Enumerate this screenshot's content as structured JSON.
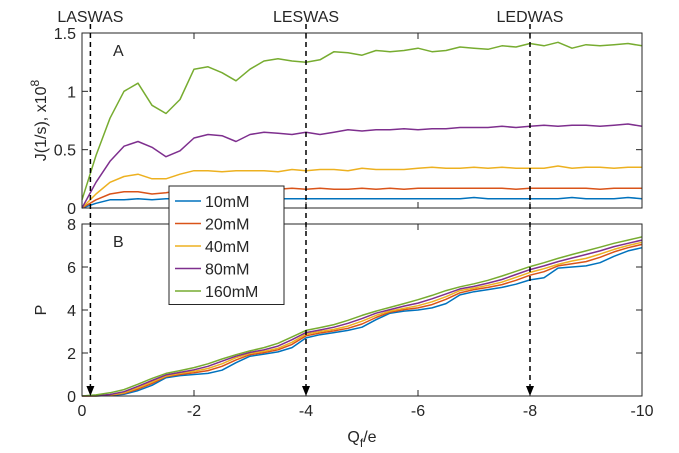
{
  "chart_data": [
    {
      "type": "line",
      "panel_label": "A",
      "ylabel": "J(1/s), x10",
      "ylabel_exp": "8",
      "xlabel": "",
      "xlim": [
        0,
        -10
      ],
      "ylim": [
        0,
        1.5
      ],
      "xticks": [
        0,
        -2,
        -4,
        -6,
        -8,
        -10
      ],
      "yticks": [
        0,
        0.5,
        1,
        1.5
      ],
      "ytick_labels": [
        "0",
        "0.5",
        "1",
        "1.5"
      ],
      "show_xtick_labels": false,
      "grid": false,
      "x": [
        0,
        -0.25,
        -0.5,
        -0.75,
        -1.0,
        -1.25,
        -1.5,
        -1.75,
        -2.0,
        -2.25,
        -2.5,
        -2.75,
        -3.0,
        -3.25,
        -3.5,
        -3.75,
        -4.0,
        -4.25,
        -4.5,
        -4.75,
        -5.0,
        -5.25,
        -5.5,
        -5.75,
        -6.0,
        -6.25,
        -6.5,
        -6.75,
        -7.0,
        -7.25,
        -7.5,
        -7.75,
        -8.0,
        -8.25,
        -8.5,
        -8.75,
        -9.0,
        -9.25,
        -9.5,
        -9.75,
        -10.0
      ],
      "series": [
        {
          "name": "10mM",
          "color": "#0072BD",
          "values": [
            0,
            0.04,
            0.07,
            0.07,
            0.08,
            0.07,
            0.08,
            0.08,
            0.08,
            0.08,
            0.08,
            0.09,
            0.08,
            0.08,
            0.08,
            0.08,
            0.08,
            0.08,
            0.08,
            0.08,
            0.08,
            0.08,
            0.08,
            0.08,
            0.08,
            0.08,
            0.08,
            0.08,
            0.09,
            0.08,
            0.08,
            0.08,
            0.08,
            0.08,
            0.08,
            0.09,
            0.08,
            0.08,
            0.08,
            0.09,
            0.08
          ]
        },
        {
          "name": "20mM",
          "color": "#D95319",
          "values": [
            0,
            0.07,
            0.12,
            0.14,
            0.14,
            0.12,
            0.13,
            0.15,
            0.16,
            0.16,
            0.16,
            0.16,
            0.17,
            0.16,
            0.16,
            0.17,
            0.16,
            0.17,
            0.16,
            0.16,
            0.17,
            0.16,
            0.17,
            0.16,
            0.17,
            0.17,
            0.17,
            0.17,
            0.17,
            0.17,
            0.17,
            0.16,
            0.17,
            0.17,
            0.17,
            0.17,
            0.17,
            0.16,
            0.17,
            0.17,
            0.17
          ]
        },
        {
          "name": "40mM",
          "color": "#EDB120",
          "values": [
            0,
            0.12,
            0.22,
            0.27,
            0.29,
            0.25,
            0.25,
            0.29,
            0.32,
            0.32,
            0.31,
            0.32,
            0.32,
            0.32,
            0.31,
            0.33,
            0.32,
            0.33,
            0.33,
            0.32,
            0.34,
            0.33,
            0.33,
            0.33,
            0.34,
            0.35,
            0.34,
            0.34,
            0.35,
            0.34,
            0.35,
            0.34,
            0.34,
            0.34,
            0.36,
            0.34,
            0.35,
            0.35,
            0.34,
            0.35,
            0.35
          ]
        },
        {
          "name": "80mM",
          "color": "#7E2F8E",
          "values": [
            0,
            0.22,
            0.4,
            0.53,
            0.57,
            0.52,
            0.44,
            0.49,
            0.6,
            0.63,
            0.62,
            0.57,
            0.63,
            0.65,
            0.64,
            0.63,
            0.65,
            0.63,
            0.65,
            0.67,
            0.66,
            0.67,
            0.67,
            0.68,
            0.67,
            0.68,
            0.68,
            0.69,
            0.69,
            0.69,
            0.7,
            0.69,
            0.7,
            0.71,
            0.7,
            0.71,
            0.71,
            0.7,
            0.71,
            0.72,
            0.7
          ]
        },
        {
          "name": "160mM",
          "color": "#77AC30",
          "values": [
            0.07,
            0.45,
            0.77,
            1.0,
            1.07,
            0.88,
            0.81,
            0.93,
            1.19,
            1.21,
            1.16,
            1.09,
            1.19,
            1.26,
            1.28,
            1.26,
            1.25,
            1.27,
            1.34,
            1.33,
            1.31,
            1.35,
            1.34,
            1.35,
            1.37,
            1.34,
            1.35,
            1.38,
            1.37,
            1.36,
            1.39,
            1.38,
            1.41,
            1.39,
            1.42,
            1.37,
            1.4,
            1.39,
            1.4,
            1.41,
            1.39
          ]
        }
      ]
    },
    {
      "type": "line",
      "panel_label": "B",
      "ylabel": "P",
      "xlabel": "Q",
      "xlabel_sub": "f",
      "xlabel_tail": "/e",
      "xlim": [
        0,
        -10
      ],
      "ylim": [
        0,
        8
      ],
      "xticks": [
        0,
        -2,
        -4,
        -6,
        -8,
        -10
      ],
      "xtick_labels": [
        "0",
        "-2",
        "-4",
        "-6",
        "-8",
        "-10"
      ],
      "yticks": [
        0,
        2,
        4,
        6,
        8
      ],
      "ytick_labels": [
        "0",
        "2",
        "4",
        "6",
        "8"
      ],
      "grid": false,
      "legend_position": "upper-left",
      "x": [
        0,
        -0.25,
        -0.5,
        -0.75,
        -1.0,
        -1.25,
        -1.5,
        -1.75,
        -2.0,
        -2.25,
        -2.5,
        -2.75,
        -3.0,
        -3.25,
        -3.5,
        -3.75,
        -4.0,
        -4.25,
        -4.5,
        -4.75,
        -5.0,
        -5.25,
        -5.5,
        -5.75,
        -6.0,
        -6.25,
        -6.5,
        -6.75,
        -7.0,
        -7.25,
        -7.5,
        -7.75,
        -8.0,
        -8.25,
        -8.5,
        -8.75,
        -9.0,
        -9.25,
        -9.5,
        -9.75,
        -10.0
      ],
      "series": [
        {
          "name": "10mM",
          "color": "#0072BD",
          "values": [
            0,
            0,
            0.03,
            0.08,
            0.25,
            0.5,
            0.85,
            0.95,
            1.0,
            1.05,
            1.2,
            1.55,
            1.85,
            1.95,
            2.05,
            2.25,
            2.7,
            2.85,
            2.95,
            3.05,
            3.2,
            3.55,
            3.85,
            3.95,
            4.0,
            4.1,
            4.3,
            4.7,
            4.85,
            4.95,
            5.05,
            5.2,
            5.4,
            5.5,
            5.95,
            6.0,
            6.05,
            6.2,
            6.5,
            6.75,
            6.9
          ]
        },
        {
          "name": "20mM",
          "color": "#D95319",
          "values": [
            0,
            0,
            0.04,
            0.12,
            0.32,
            0.58,
            0.9,
            1.0,
            1.08,
            1.18,
            1.38,
            1.68,
            1.92,
            2.02,
            2.15,
            2.4,
            2.8,
            2.93,
            3.03,
            3.15,
            3.35,
            3.65,
            3.9,
            4.02,
            4.1,
            4.25,
            4.5,
            4.8,
            4.95,
            5.05,
            5.18,
            5.38,
            5.62,
            5.78,
            6.05,
            6.15,
            6.25,
            6.45,
            6.7,
            6.9,
            7.05
          ]
        },
        {
          "name": "40mM",
          "color": "#EDB120",
          "values": [
            0,
            0.01,
            0.05,
            0.15,
            0.38,
            0.65,
            0.93,
            1.05,
            1.15,
            1.28,
            1.5,
            1.78,
            1.98,
            2.08,
            2.22,
            2.5,
            2.88,
            3.0,
            3.1,
            3.25,
            3.48,
            3.75,
            3.95,
            4.08,
            4.2,
            4.38,
            4.62,
            4.9,
            5.02,
            5.15,
            5.3,
            5.52,
            5.75,
            5.92,
            6.12,
            6.28,
            6.4,
            6.6,
            6.82,
            7.0,
            7.15
          ]
        },
        {
          "name": "80mM",
          "color": "#7E2F8E",
          "values": [
            0,
            0.02,
            0.07,
            0.2,
            0.45,
            0.72,
            0.98,
            1.1,
            1.22,
            1.38,
            1.62,
            1.85,
            2.03,
            2.15,
            2.32,
            2.62,
            2.95,
            3.07,
            3.2,
            3.38,
            3.6,
            3.85,
            4.02,
            4.18,
            4.32,
            4.52,
            4.75,
            4.98,
            5.1,
            5.25,
            5.42,
            5.65,
            5.88,
            6.05,
            6.25,
            6.42,
            6.58,
            6.75,
            6.95,
            7.1,
            7.25
          ]
        },
        {
          "name": "160mM",
          "color": "#77AC30",
          "values": [
            0,
            0.05,
            0.15,
            0.3,
            0.55,
            0.82,
            1.05,
            1.18,
            1.32,
            1.5,
            1.72,
            1.92,
            2.1,
            2.25,
            2.45,
            2.75,
            3.05,
            3.18,
            3.32,
            3.52,
            3.75,
            3.95,
            4.12,
            4.3,
            4.48,
            4.68,
            4.9,
            5.08,
            5.22,
            5.38,
            5.58,
            5.8,
            6.02,
            6.2,
            6.4,
            6.58,
            6.75,
            6.92,
            7.1,
            7.25,
            7.4
          ]
        }
      ]
    }
  ],
  "annotations": [
    {
      "label": "LASWAS",
      "x": -0.15
    },
    {
      "label": "LESWAS",
      "x": -4.0
    },
    {
      "label": "LEDWAS",
      "x": -8.0
    }
  ]
}
